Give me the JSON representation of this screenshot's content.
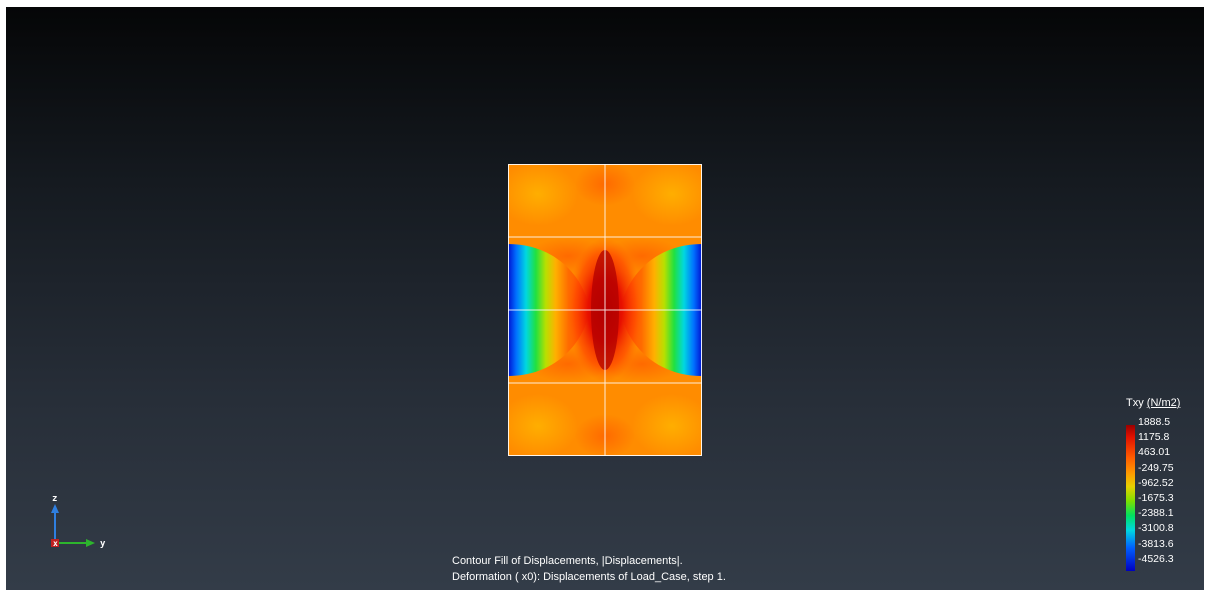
{
  "legend": {
    "title": "Txy",
    "unit": "(N/m2)",
    "values": [
      "1888.5",
      "1175.8",
      "463.01",
      "-249.75",
      "-962.52",
      "-1675.3",
      "-2388.1",
      "-3100.8",
      "-3813.6",
      "-4526.3"
    ]
  },
  "caption": {
    "line1": "Contour Fill of Displacements, |Displacements|.",
    "line2": "Deformation ( x0): Displacements of Load_Case, step 1."
  },
  "axes": {
    "z_label": "z",
    "x_label": "x",
    "y_label": "y",
    "z_color": "#2f7fe0",
    "x_color": "#c02020",
    "y_color": "#2db52d"
  },
  "colors": {
    "max": "#9a0000",
    "high": "#e01000",
    "mid": "#ff9a00",
    "low": "#00e060",
    "min": "#0000c0"
  }
}
